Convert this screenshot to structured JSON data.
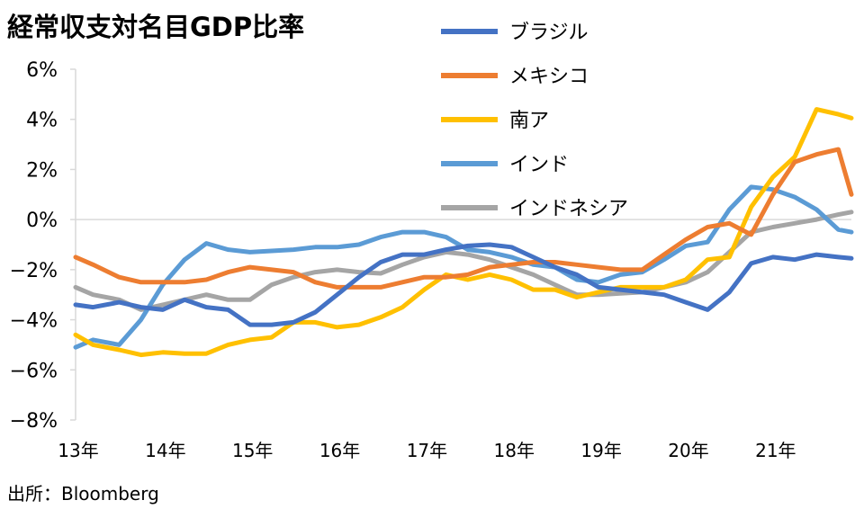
{
  "chart_data": {
    "type": "line",
    "title": "経常収支対名目GDP比率",
    "xlabel": "",
    "ylabel": "",
    "x_labels": [
      "13年",
      "14年",
      "15年",
      "16年",
      "17年",
      "18年",
      "19年",
      "20年",
      "21年"
    ],
    "y_tick_labels": [
      "6%",
      "4%",
      "2%",
      "0%",
      "−2%",
      "−4%",
      "−6%",
      "−8%"
    ],
    "y_ticks": [
      6,
      4,
      2,
      0,
      -2,
      -4,
      -6,
      -8
    ],
    "ylim": [
      -8,
      6
    ],
    "xlim": [
      2013.0,
      2021.9
    ],
    "grid": false,
    "legend_position": "top-right",
    "series": [
      {
        "name": "ブラジル",
        "color": "#4472C4",
        "x": [
          2013.0,
          2013.2,
          2013.5,
          2013.75,
          2014.0,
          2014.25,
          2014.5,
          2014.75,
          2015.0,
          2015.25,
          2015.5,
          2015.75,
          2016.0,
          2016.25,
          2016.5,
          2016.75,
          2017.0,
          2017.25,
          2017.5,
          2017.75,
          2018.0,
          2018.25,
          2018.5,
          2018.75,
          2019.0,
          2019.25,
          2019.5,
          2019.75,
          2020.0,
          2020.25,
          2020.5,
          2020.75,
          2021.0,
          2021.25,
          2021.5,
          2021.75,
          2021.9
        ],
        "values": [
          -3.4,
          -3.5,
          -3.3,
          -3.5,
          -3.6,
          -3.2,
          -3.5,
          -3.6,
          -4.2,
          -4.2,
          -4.1,
          -3.7,
          -3.0,
          -2.3,
          -1.7,
          -1.4,
          -1.4,
          -1.2,
          -1.05,
          -1.0,
          -1.1,
          -1.5,
          -1.9,
          -2.2,
          -2.7,
          -2.8,
          -2.9,
          -3.0,
          -3.3,
          -3.6,
          -2.9,
          -1.75,
          -1.5,
          -1.6,
          -1.4,
          -1.5,
          -1.55
        ]
      },
      {
        "name": "メキシコ",
        "color": "#ED7D31",
        "x": [
          2013.0,
          2013.2,
          2013.5,
          2013.75,
          2014.0,
          2014.25,
          2014.5,
          2014.75,
          2015.0,
          2015.25,
          2015.5,
          2015.75,
          2016.0,
          2016.25,
          2016.5,
          2016.75,
          2017.0,
          2017.25,
          2017.5,
          2017.75,
          2018.0,
          2018.25,
          2018.5,
          2018.75,
          2019.0,
          2019.25,
          2019.5,
          2019.75,
          2020.0,
          2020.25,
          2020.5,
          2020.75,
          2021.0,
          2021.25,
          2021.5,
          2021.75,
          2021.9
        ],
        "values": [
          -1.5,
          -1.8,
          -2.3,
          -2.5,
          -2.5,
          -2.5,
          -2.4,
          -2.1,
          -1.9,
          -2.0,
          -2.1,
          -2.5,
          -2.7,
          -2.7,
          -2.7,
          -2.5,
          -2.3,
          -2.3,
          -2.2,
          -1.9,
          -1.8,
          -1.7,
          -1.7,
          -1.8,
          -1.9,
          -2.0,
          -2.0,
          -1.4,
          -0.8,
          -0.3,
          -0.15,
          -0.6,
          1.0,
          2.3,
          2.6,
          2.8,
          1.0
        ]
      },
      {
        "name": "南ア",
        "color": "#FFC000",
        "x": [
          2013.0,
          2013.2,
          2013.5,
          2013.75,
          2014.0,
          2014.25,
          2014.5,
          2014.75,
          2015.0,
          2015.25,
          2015.5,
          2015.75,
          2016.0,
          2016.25,
          2016.5,
          2016.75,
          2017.0,
          2017.25,
          2017.5,
          2017.75,
          2018.0,
          2018.25,
          2018.5,
          2018.75,
          2019.0,
          2019.25,
          2019.5,
          2019.75,
          2020.0,
          2020.25,
          2020.5,
          2020.75,
          2021.0,
          2021.25,
          2021.5,
          2021.75,
          2021.9
        ],
        "values": [
          -4.6,
          -5.0,
          -5.2,
          -5.4,
          -5.3,
          -5.35,
          -5.35,
          -5.0,
          -4.8,
          -4.7,
          -4.1,
          -4.1,
          -4.3,
          -4.2,
          -3.9,
          -3.5,
          -2.8,
          -2.2,
          -2.4,
          -2.2,
          -2.4,
          -2.8,
          -2.8,
          -3.1,
          -2.9,
          -2.7,
          -2.7,
          -2.7,
          -2.4,
          -1.6,
          -1.5,
          0.5,
          1.7,
          2.5,
          4.4,
          4.2,
          4.05
        ]
      },
      {
        "name": "インド",
        "color": "#5B9BD5",
        "x": [
          2013.0,
          2013.2,
          2013.5,
          2013.75,
          2014.0,
          2014.25,
          2014.5,
          2014.75,
          2015.0,
          2015.25,
          2015.5,
          2015.75,
          2016.0,
          2016.25,
          2016.5,
          2016.75,
          2017.0,
          2017.25,
          2017.5,
          2017.75,
          2018.0,
          2018.25,
          2018.5,
          2018.75,
          2019.0,
          2019.25,
          2019.5,
          2019.75,
          2020.0,
          2020.25,
          2020.5,
          2020.75,
          2021.0,
          2021.25,
          2021.5,
          2021.75,
          2021.9
        ],
        "values": [
          -5.1,
          -4.8,
          -5.0,
          -4.0,
          -2.6,
          -1.6,
          -0.95,
          -1.2,
          -1.3,
          -1.25,
          -1.2,
          -1.1,
          -1.1,
          -1.0,
          -0.7,
          -0.5,
          -0.5,
          -0.7,
          -1.2,
          -1.3,
          -1.5,
          -1.8,
          -1.9,
          -2.4,
          -2.5,
          -2.2,
          -2.1,
          -1.6,
          -1.05,
          -0.9,
          0.4,
          1.3,
          1.2,
          0.9,
          0.4,
          -0.4,
          -0.5
        ]
      },
      {
        "name": "インドネシア",
        "color": "#A5A5A5",
        "x": [
          2013.0,
          2013.2,
          2013.5,
          2013.75,
          2014.0,
          2014.25,
          2014.5,
          2014.75,
          2015.0,
          2015.25,
          2015.5,
          2015.75,
          2016.0,
          2016.25,
          2016.5,
          2016.75,
          2017.0,
          2017.25,
          2017.5,
          2017.75,
          2018.0,
          2018.25,
          2018.5,
          2018.75,
          2019.0,
          2019.25,
          2019.5,
          2019.75,
          2020.0,
          2020.25,
          2020.5,
          2020.75,
          2021.0,
          2021.25,
          2021.5,
          2021.75,
          2021.9
        ],
        "values": [
          -2.7,
          -3.0,
          -3.2,
          -3.6,
          -3.4,
          -3.2,
          -3.0,
          -3.2,
          -3.2,
          -2.6,
          -2.3,
          -2.1,
          -2.0,
          -2.1,
          -2.15,
          -1.8,
          -1.5,
          -1.3,
          -1.4,
          -1.6,
          -1.9,
          -2.2,
          -2.6,
          -3.0,
          -3.0,
          -2.95,
          -2.9,
          -2.7,
          -2.5,
          -2.1,
          -1.3,
          -0.5,
          -0.3,
          -0.15,
          0.0,
          0.2,
          0.3
        ]
      }
    ],
    "source": "出所：Bloomberg"
  }
}
